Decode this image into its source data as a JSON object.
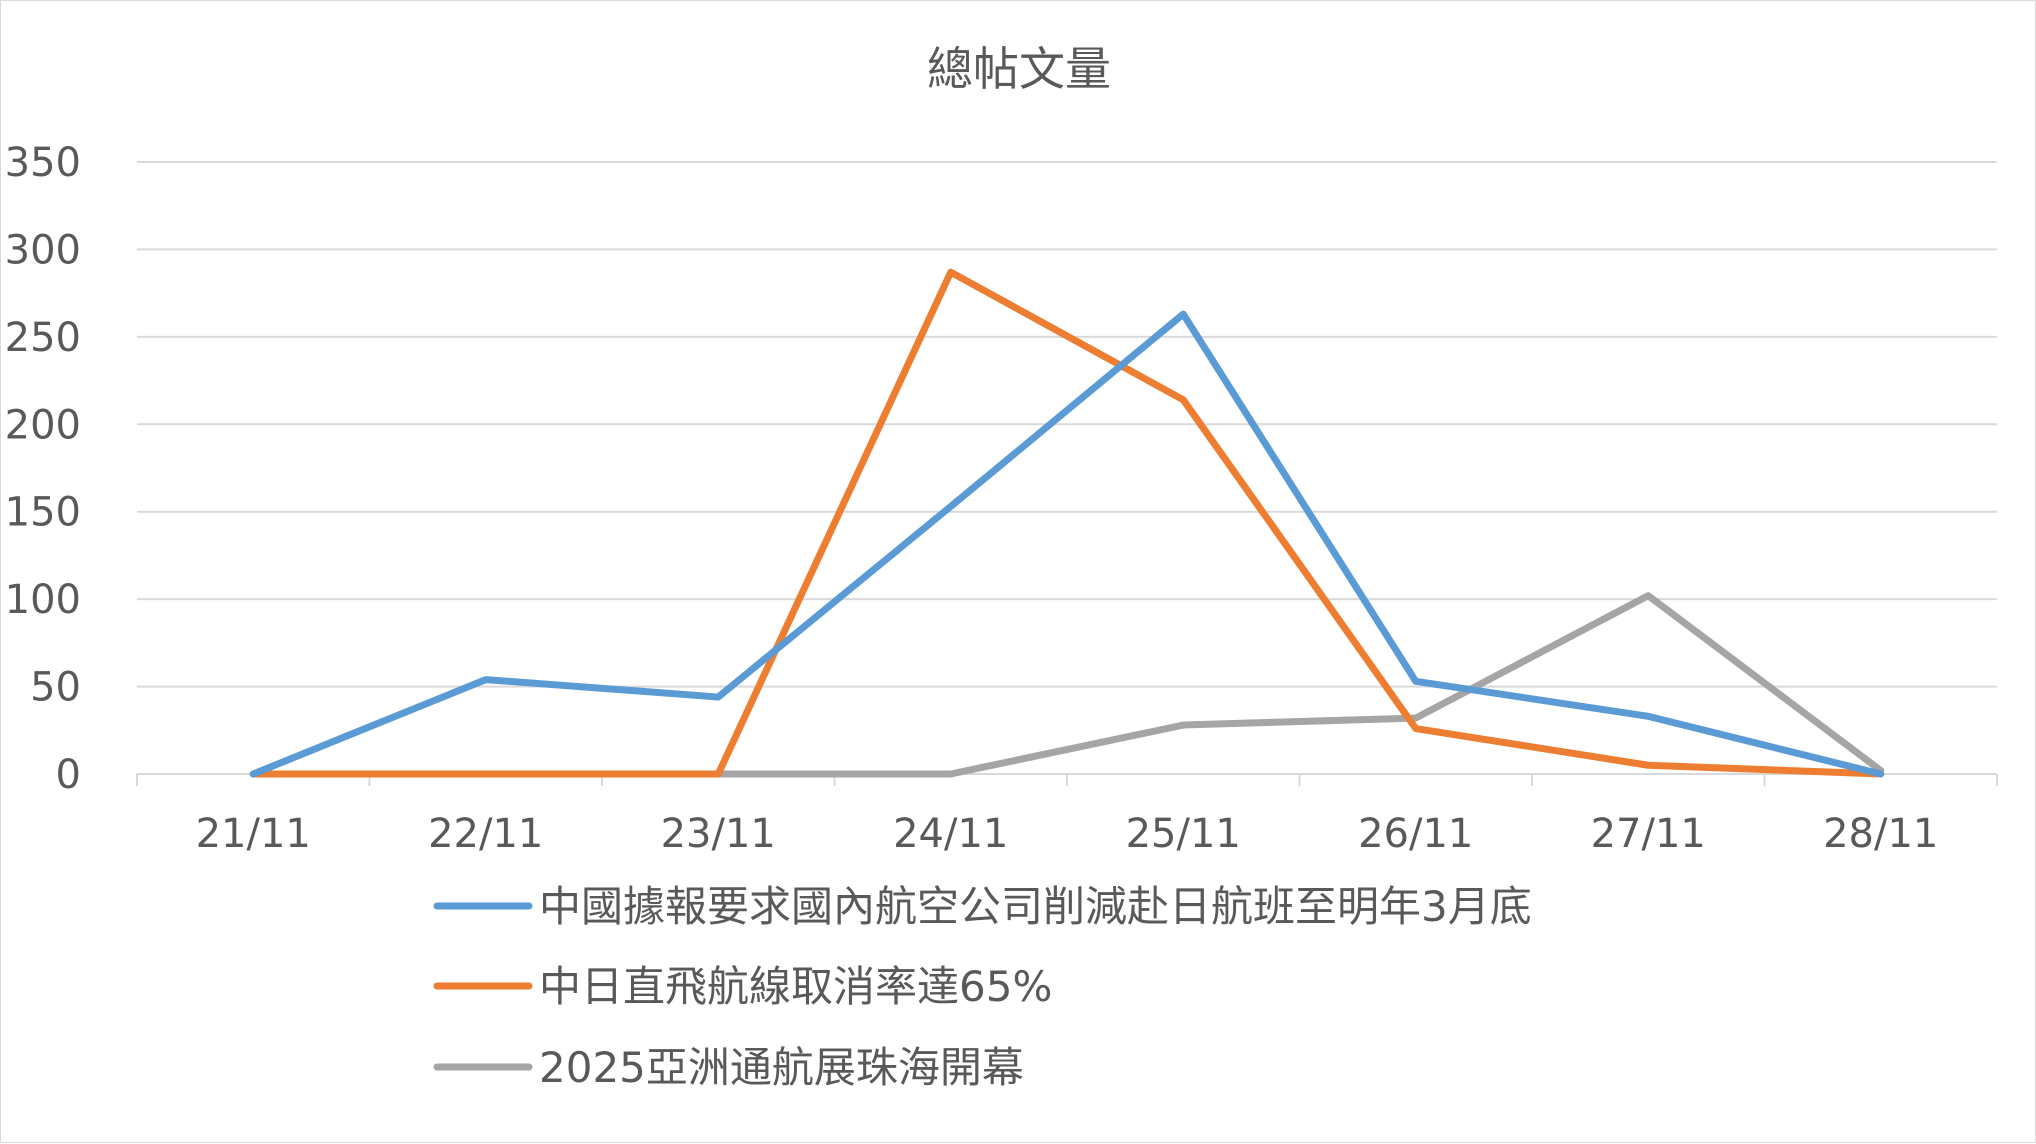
{
  "chart_data": {
    "type": "line",
    "title": "總帖文量",
    "xlabel": "",
    "ylabel": "",
    "categories": [
      "21/11",
      "22/11",
      "23/11",
      "24/11",
      "25/11",
      "26/11",
      "27/11",
      "28/11"
    ],
    "ylim": [
      0,
      350
    ],
    "yticks": [
      "0",
      "50",
      "100",
      "150",
      "200",
      "250",
      "300",
      "350"
    ],
    "grid": true,
    "legend_position": "bottom",
    "series": [
      {
        "name": "中國據報要求國內航空公司削減赴日航班至明年3月底",
        "color": "#5B9BD5",
        "values": [
          0,
          54,
          44,
          153,
          263,
          53,
          33,
          0
        ]
      },
      {
        "name": "中日直飛航線取消率達65%",
        "color": "#ED7D31",
        "values": [
          0,
          0,
          0,
          287,
          214,
          26,
          5,
          0
        ]
      },
      {
        "name": "2025亞洲通航展珠海開幕",
        "color": "#A5A5A5",
        "values": [
          0,
          0,
          0,
          0,
          28,
          32,
          102,
          2
        ]
      }
    ]
  }
}
